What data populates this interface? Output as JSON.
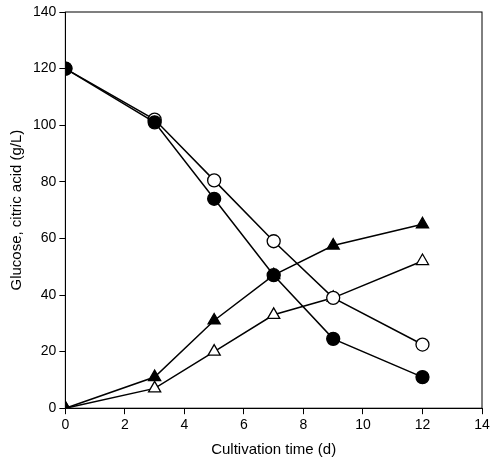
{
  "chart_data": {
    "type": "line",
    "x_label": "Cultivation time (d)",
    "y_label": "Glucose, citric acid (g/L)",
    "x": [
      0,
      3,
      5,
      7,
      9,
      12
    ],
    "series": [
      {
        "color": "#000000",
        "marker": "circle",
        "line_style": "solid",
        "values": [
          120,
          101,
          74,
          47,
          24.5,
          11
        ]
      },
      {
        "color": "#000000",
        "marker": "open_circle",
        "line_style": "solid",
        "values": [
          120,
          102,
          80.5,
          59,
          39,
          22.5
        ]
      },
      {
        "color": "#000000",
        "marker": "triangle",
        "line_style": "solid",
        "values": [
          0,
          11,
          31,
          47,
          57.5,
          65
        ]
      },
      {
        "color": "#000000",
        "marker": "open_triangle",
        "line_style": "solid",
        "values": [
          0,
          7,
          20,
          33,
          39,
          52
        ]
      }
    ],
    "xlim": [
      0,
      14
    ],
    "xticks": [
      0,
      2,
      4,
      6,
      8,
      10,
      12,
      14
    ],
    "ylim": [
      0,
      140
    ],
    "yticks": [
      0,
      20,
      40,
      60,
      80,
      100,
      120,
      140
    ],
    "grid": false
  }
}
